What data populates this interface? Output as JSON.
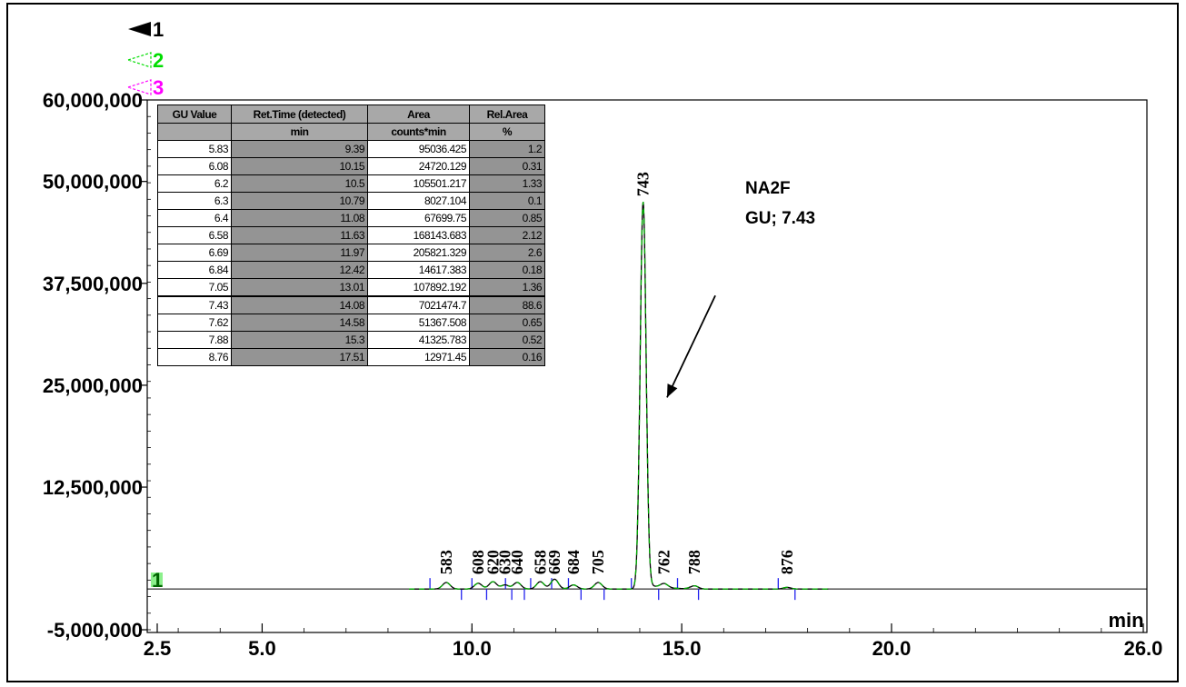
{
  "chart_data": {
    "type": "line",
    "xlabel": "min",
    "ylabel": "",
    "xlim": [
      2.5,
      26.0
    ],
    "ylim": [
      -5000000,
      60000000
    ],
    "x_ticks": [
      "2.5",
      "5.0",
      "10.0",
      "15.0",
      "20.0",
      "26.0"
    ],
    "x_tick_values": [
      2.5,
      5.0,
      10.0,
      15.0,
      20.0,
      26.0
    ],
    "y_ticks": [
      "60,000,000",
      "50,000,000",
      "37,500,000",
      "25,000,000",
      "12,500,000",
      "-5,000,000"
    ],
    "y_tick_values": [
      60000000,
      50000000,
      37500000,
      25000000,
      12500000,
      -5000000
    ],
    "legend": [
      "1",
      "2",
      "3"
    ],
    "legend_colors": [
      "#000000",
      "#00dd00",
      "#ff00ff"
    ],
    "trace_color": "#000000",
    "trace_overlay_color": "#00aa00",
    "baseline_marker": "1",
    "peaks": [
      {
        "label": "583",
        "x": 9.39,
        "y": 800000
      },
      {
        "label": "608",
        "x": 10.15,
        "y": 700000
      },
      {
        "label": "620",
        "x": 10.5,
        "y": 900000
      },
      {
        "label": "630",
        "x": 10.79,
        "y": 500000
      },
      {
        "label": "640",
        "x": 11.08,
        "y": 800000
      },
      {
        "label": "658",
        "x": 11.63,
        "y": 900000
      },
      {
        "label": "669",
        "x": 11.97,
        "y": 1200000
      },
      {
        "label": "684",
        "x": 12.42,
        "y": 500000
      },
      {
        "label": "705",
        "x": 13.01,
        "y": 800000
      },
      {
        "label": "743",
        "x": 14.08,
        "y": 47500000
      },
      {
        "label": "762",
        "x": 14.58,
        "y": 500000
      },
      {
        "label": "788",
        "x": 15.3,
        "y": 400000
      },
      {
        "label": "876",
        "x": 17.51,
        "y": 200000
      }
    ],
    "integration_marks_up": [
      9.0,
      10.0,
      10.8,
      11.4,
      11.9,
      12.3,
      13.8,
      14.9,
      17.3
    ],
    "integration_marks_down": [
      9.75,
      10.35,
      10.95,
      11.25,
      12.6,
      13.15,
      14.45,
      15.4,
      17.7
    ],
    "annotation": {
      "line1": "NA2F",
      "line2": "GU; 7.43",
      "arrow_from": [
        15.8,
        36000000
      ],
      "arrow_to": [
        14.65,
        23500000
      ]
    },
    "table": {
      "headers": [
        "GU Value",
        "Ret.Time (detected)",
        "Area",
        "Rel.Area"
      ],
      "units": [
        "",
        "min",
        "counts*min",
        "%"
      ],
      "rows": [
        [
          "5.83",
          "9.39",
          "95036.425",
          "1.2"
        ],
        [
          "6.08",
          "10.15",
          "24720.129",
          "0.31"
        ],
        [
          "6.2",
          "10.5",
          "105501.217",
          "1.33"
        ],
        [
          "6.3",
          "10.79",
          "8027.104",
          "0.1"
        ],
        [
          "6.4",
          "11.08",
          "67699.75",
          "0.85"
        ],
        [
          "6.58",
          "11.63",
          "168143.683",
          "2.12"
        ],
        [
          "6.69",
          "11.97",
          "205821.329",
          "2.6"
        ],
        [
          "6.84",
          "12.42",
          "14617.383",
          "0.18"
        ],
        [
          "7.05",
          "13.01",
          "107892.192",
          "1.36"
        ],
        [
          "7.43",
          "14.08",
          "7021474.7",
          "88.6"
        ],
        [
          "7.62",
          "14.58",
          "51367.508",
          "0.65"
        ],
        [
          "7.88",
          "15.3",
          "41325.783",
          "0.52"
        ],
        [
          "8.76",
          "17.51",
          "12971.45",
          "0.16"
        ]
      ]
    }
  }
}
